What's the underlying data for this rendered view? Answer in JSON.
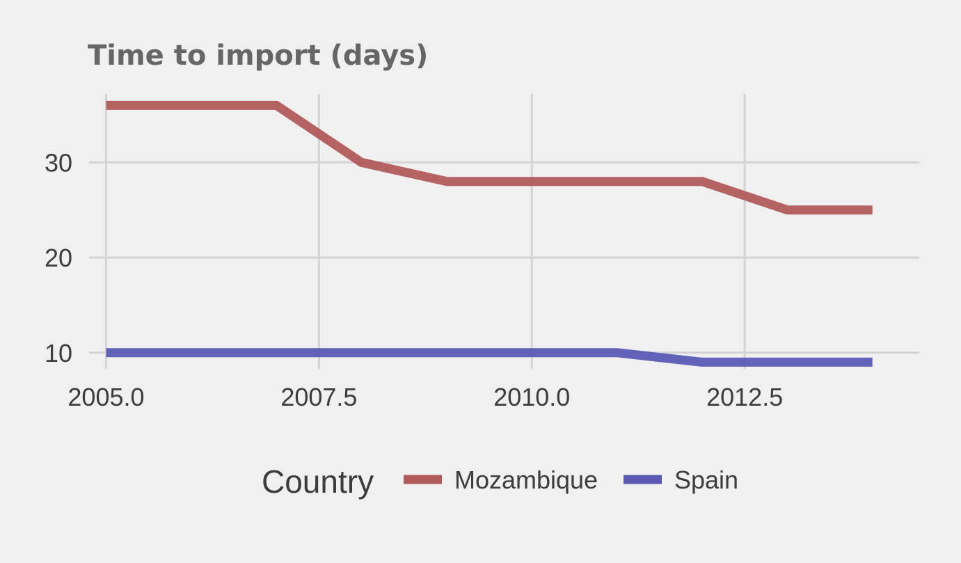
{
  "chart_data": {
    "type": "line",
    "title": "Time to import (days)",
    "xlabel": "",
    "ylabel": "",
    "xlim": [
      2004.8,
      2014.55
    ],
    "ylim": [
      8.3,
      37.2
    ],
    "x_ticks": [
      2005.0,
      2007.5,
      2010.0,
      2012.5
    ],
    "x_tick_labels": [
      "2005.0",
      "2007.5",
      "2010.0",
      "2012.5"
    ],
    "y_ticks": [
      10,
      20,
      30
    ],
    "y_tick_labels": [
      "10",
      "20",
      "30"
    ],
    "grid": true,
    "legend": {
      "title": "Country",
      "position": "bottom"
    },
    "series": [
      {
        "name": "Mozambique",
        "color": "#b05a5a",
        "x": [
          2005,
          2006,
          2007,
          2008,
          2009,
          2010,
          2011,
          2012,
          2013,
          2014
        ],
        "values": [
          36,
          36,
          36,
          30,
          28,
          28,
          28,
          28,
          25,
          25
        ]
      },
      {
        "name": "Spain",
        "color": "#5a5ab5",
        "x": [
          2005,
          2006,
          2007,
          2008,
          2009,
          2010,
          2011,
          2012,
          2013,
          2014
        ],
        "values": [
          10,
          10,
          10,
          10,
          10,
          10,
          10,
          9,
          9,
          9
        ]
      }
    ]
  }
}
